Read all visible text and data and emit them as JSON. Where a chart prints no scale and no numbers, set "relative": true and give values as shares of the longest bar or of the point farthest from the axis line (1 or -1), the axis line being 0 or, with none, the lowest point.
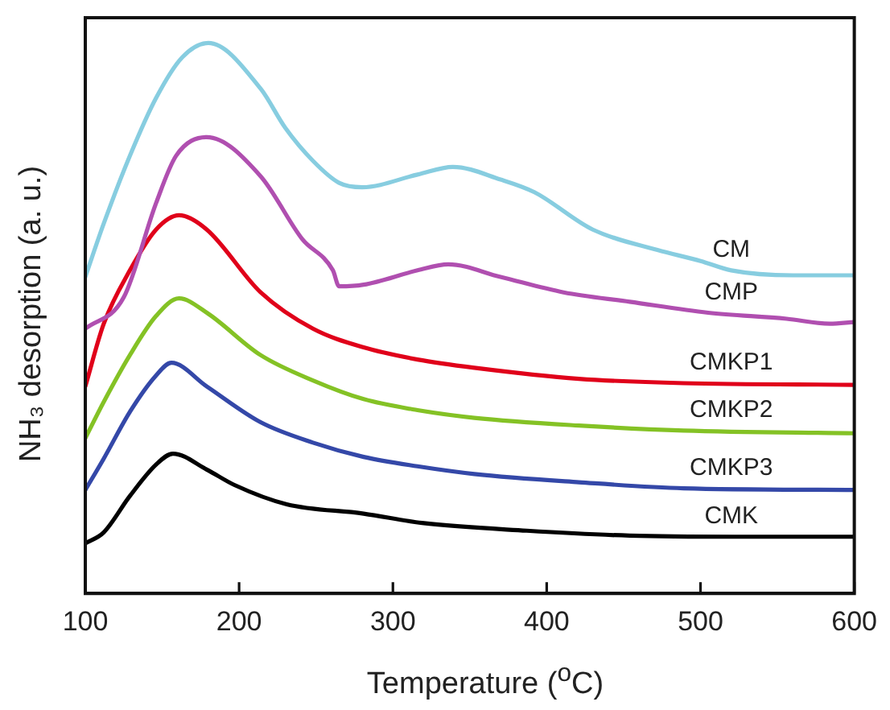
{
  "chart_data": {
    "type": "line",
    "relative": true,
    "xlabel": "Temperature ($^{o}$C)",
    "ylabel": "NH₃ desorption (a. u.)",
    "xlim": [
      100,
      600
    ],
    "xticks": [
      100,
      200,
      300,
      400,
      500,
      600
    ],
    "grid": false,
    "legend": false,
    "marker": "none",
    "line_style": "solid",
    "series": [
      {
        "name": "CM",
        "color": "#87cde0",
        "x": [
          100,
          112,
          129,
          146,
          163,
          180,
          214,
          230,
          248,
          265,
          280,
          316,
          339,
          370,
          392,
          430,
          472,
          500,
          520,
          560,
          600
        ],
        "values": [
          0.575,
          0.672,
          0.795,
          0.9,
          0.974,
          1.0,
          0.917,
          0.846,
          0.786,
          0.746,
          0.738,
          0.761,
          0.775,
          0.752,
          0.729,
          0.661,
          0.624,
          0.604,
          0.587,
          0.578,
          0.578
        ]
      },
      {
        "name": "CMP",
        "color": "#b04fb0",
        "x": [
          100,
          125,
          146,
          159,
          179,
          214,
          241,
          261,
          265,
          281,
          316,
          336,
          370,
          411,
          454,
          505,
          556,
          584,
          600
        ],
        "values": [
          0.481,
          0.538,
          0.709,
          0.795,
          0.829,
          0.758,
          0.644,
          0.587,
          0.558,
          0.561,
          0.587,
          0.598,
          0.575,
          0.547,
          0.53,
          0.51,
          0.499,
          0.49,
          0.493
        ]
      },
      {
        "name": "CMKP1",
        "color": "#e0001a",
        "x": [
          100,
          112,
          129,
          146,
          161,
          179,
          214,
          248,
          281,
          316,
          353,
          421,
          489,
          600
        ],
        "values": [
          0.376,
          0.49,
          0.587,
          0.661,
          0.687,
          0.661,
          0.547,
          0.481,
          0.447,
          0.425,
          0.41,
          0.39,
          0.382,
          0.379
        ]
      },
      {
        "name": "CMKP2",
        "color": "#84c225",
        "x": [
          100,
          112,
          129,
          146,
          161,
          179,
          214,
          248,
          281,
          316,
          353,
          421,
          489,
          600
        ],
        "values": [
          0.282,
          0.348,
          0.433,
          0.504,
          0.536,
          0.51,
          0.433,
          0.387,
          0.353,
          0.333,
          0.319,
          0.305,
          0.296,
          0.291
        ]
      },
      {
        "name": "CMKP3",
        "color": "#3448a8",
        "x": [
          100,
          112,
          129,
          146,
          156,
          179,
          214,
          248,
          281,
          316,
          353,
          421,
          489,
          600
        ],
        "values": [
          0.188,
          0.245,
          0.33,
          0.396,
          0.419,
          0.376,
          0.311,
          0.274,
          0.248,
          0.231,
          0.217,
          0.202,
          0.191,
          0.188
        ]
      },
      {
        "name": "CMK",
        "color": "#000000",
        "x": [
          100,
          112,
          129,
          146,
          157,
          179,
          197,
          231,
          281,
          319,
          387,
          454,
          522,
          600
        ],
        "values": [
          0.091,
          0.111,
          0.177,
          0.234,
          0.254,
          0.225,
          0.197,
          0.162,
          0.145,
          0.128,
          0.114,
          0.105,
          0.103,
          0.103
        ]
      }
    ]
  }
}
